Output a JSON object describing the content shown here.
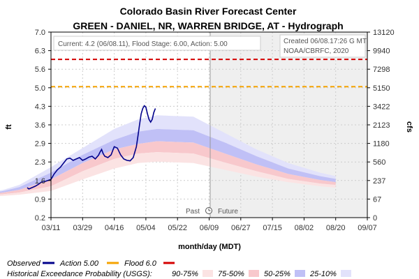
{
  "chart_data": {
    "type": "line",
    "title": "Colorado Basin River Forecast Center",
    "subtitle": "GREEN - DANIEL, NR, WARREN BRIDGE, AT - Hydrograph",
    "ylabel": "ft",
    "ylabel_right": "cfs",
    "xlabel": "month/day (MDT)",
    "ylim": [
      0.2,
      7.0
    ],
    "y_ticks": [
      "0.2",
      "0.9",
      "1.6",
      "2.3",
      "2.9",
      "3.6",
      "4.3",
      "5.0",
      "5.6",
      "6.3",
      "7.0"
    ],
    "y_ticks_right": [
      "0",
      "67",
      "237",
      "560",
      "1180",
      "2123",
      "3422",
      "5150",
      "7298",
      "9940",
      "13120"
    ],
    "x_ticks": [
      "03/11",
      "03/29",
      "04/16",
      "05/04",
      "05/22",
      "06/09",
      "06/27",
      "07/15",
      "08/02",
      "08/20",
      "09/07"
    ],
    "info_current": "Current: 4.2 (06/08.11), Flood Stage: 6.00, Action: 5.00",
    "created": "Created 06/08.17:26 G MT",
    "credit": "NOAA/CBRFC, 2020",
    "past_label": "Past",
    "future_label": "Future",
    "action_stage": 5.0,
    "flood_stage": 6.0,
    "colors": {
      "observed": "#00008b",
      "action": "#f5a300",
      "flood": "#d40000",
      "band_90_75": "#fbe3e3",
      "band_75_50": "#f8c8cc",
      "band_50_25": "#c0c0f6",
      "band_25_10": "#e2e2fb",
      "future_bg": "#efefef",
      "grid": "#cccccc"
    },
    "observed": [
      [
        -0.75,
        1.3
      ],
      [
        -0.7,
        1.25
      ],
      [
        -0.6,
        1.3
      ],
      [
        -0.5,
        1.35
      ],
      [
        -0.4,
        1.42
      ],
      [
        -0.3,
        1.5
      ],
      [
        -0.2,
        1.52
      ],
      [
        0.0,
        1.6
      ],
      [
        0.1,
        1.8
      ],
      [
        0.2,
        1.95
      ],
      [
        0.3,
        2.05
      ],
      [
        0.4,
        2.2
      ],
      [
        0.5,
        2.35
      ],
      [
        0.6,
        2.38
      ],
      [
        0.7,
        2.3
      ],
      [
        0.8,
        2.35
      ],
      [
        0.9,
        2.4
      ],
      [
        1.0,
        2.3
      ],
      [
        1.1,
        2.35
      ],
      [
        1.2,
        2.42
      ],
      [
        1.3,
        2.45
      ],
      [
        1.4,
        2.35
      ],
      [
        1.5,
        2.48
      ],
      [
        1.55,
        2.6
      ],
      [
        1.6,
        2.7
      ],
      [
        1.65,
        2.55
      ],
      [
        1.7,
        2.45
      ],
      [
        1.8,
        2.4
      ],
      [
        1.9,
        2.5
      ],
      [
        1.95,
        2.65
      ],
      [
        2.0,
        2.8
      ],
      [
        2.1,
        2.75
      ],
      [
        2.2,
        2.5
      ],
      [
        2.3,
        2.35
      ],
      [
        2.4,
        2.3
      ],
      [
        2.5,
        2.28
      ],
      [
        2.6,
        2.4
      ],
      [
        2.7,
        2.8
      ],
      [
        2.75,
        3.2
      ],
      [
        2.8,
        3.6
      ],
      [
        2.85,
        4.0
      ],
      [
        2.9,
        4.2
      ],
      [
        2.95,
        4.3
      ],
      [
        3.0,
        4.25
      ],
      [
        3.05,
        4.0
      ],
      [
        3.1,
        3.8
      ],
      [
        3.15,
        3.7
      ],
      [
        3.2,
        3.8
      ],
      [
        3.25,
        4.05
      ],
      [
        3.3,
        4.2
      ]
    ],
    "bands_x": [
      -2.0,
      -1.5,
      -1.0,
      0.0,
      1.0,
      2.0,
      2.75,
      3.35,
      4.5,
      5.5,
      6.5,
      7.5,
      8.5,
      9.0
    ],
    "bands": {
      "p10_upper": [
        1.12,
        1.22,
        1.4,
        2.05,
        2.75,
        3.45,
        3.8,
        3.95,
        3.9,
        3.3,
        2.7,
        2.2,
        1.85,
        1.72
      ],
      "p25_upper": [
        1.08,
        1.18,
        1.32,
        1.85,
        2.5,
        3.05,
        3.35,
        3.45,
        3.4,
        2.95,
        2.45,
        2.0,
        1.72,
        1.62
      ],
      "p50_upper": [
        1.04,
        1.12,
        1.22,
        1.6,
        2.2,
        2.7,
        2.9,
        3.0,
        2.95,
        2.55,
        2.15,
        1.8,
        1.58,
        1.5
      ],
      "p75_upper": [
        1.0,
        1.06,
        1.12,
        1.35,
        1.9,
        2.35,
        2.55,
        2.6,
        2.55,
        2.22,
        1.9,
        1.62,
        1.45,
        1.4
      ],
      "p90_lower": [
        0.96,
        1.0,
        1.04,
        1.18,
        1.6,
        2.0,
        2.2,
        2.25,
        2.2,
        1.95,
        1.7,
        1.5,
        1.35,
        1.3
      ]
    },
    "legend_row1": {
      "observed": "Observed",
      "action": "Action 5.00",
      "flood": "Flood 6.0"
    },
    "legend_row2": {
      "title": "Historical Exceedance Probability (USGS):",
      "b1": "90-75%",
      "b2": "75-50%",
      "b3": "50-25%",
      "b4": "25-10%"
    }
  }
}
